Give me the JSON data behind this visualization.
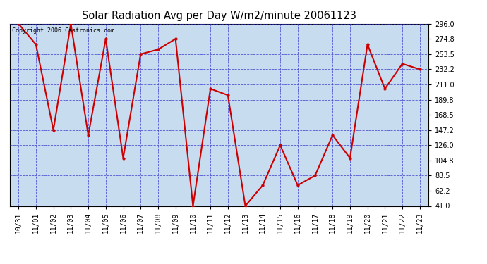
{
  "title": "Solar Radiation Avg per Day W/m2/minute 20061123",
  "copyright": "Copyright 2006 Castronics.com",
  "x_labels": [
    "10/31",
    "11/01",
    "11/02",
    "11/03",
    "11/04",
    "11/05",
    "11/06",
    "11/07",
    "11/08",
    "11/09",
    "11/10",
    "11/11",
    "11/12",
    "11/13",
    "11/14",
    "11/15",
    "11/16",
    "11/17",
    "11/18",
    "11/19",
    "11/20",
    "11/21",
    "11/22",
    "11/23"
  ],
  "y_values": [
    296.0,
    267.0,
    147.2,
    296.0,
    140.0,
    274.8,
    108.0,
    253.5,
    260.0,
    274.8,
    41.0,
    205.0,
    196.0,
    41.0,
    70.0,
    126.0,
    70.0,
    83.5,
    140.0,
    108.0,
    267.0,
    205.0,
    240.0,
    232.2
  ],
  "ylim_min": 41.0,
  "ylim_max": 296.0,
  "yticks": [
    41.0,
    62.2,
    83.5,
    104.8,
    126.0,
    147.2,
    168.5,
    189.8,
    211.0,
    232.2,
    253.5,
    274.8,
    296.0
  ],
  "line_color": "#cc0000",
  "marker_color": "#cc0000",
  "bg_color": "#c8dcf0",
  "fig_bg": "#ffffff",
  "grid_color": "#3333cc",
  "title_color": "#000000",
  "border_color": "#000000",
  "figwidth": 6.9,
  "figheight": 3.75,
  "dpi": 100
}
